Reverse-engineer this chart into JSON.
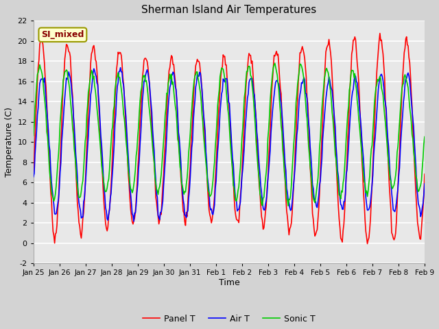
{
  "title": "Sherman Island Air Temperatures",
  "xlabel": "Time",
  "ylabel": "Temperature (C)",
  "ylim": [
    -2,
    22
  ],
  "yticks": [
    -2,
    0,
    2,
    4,
    6,
    8,
    10,
    12,
    14,
    16,
    18,
    20,
    22
  ],
  "background_color": "#d3d3d3",
  "plot_bg_color": "#e8e8e8",
  "grid_color": "#ffffff",
  "label_box_text": "SI_mixed",
  "label_box_facecolor": "#ffffcc",
  "label_box_edgecolor": "#999900",
  "label_box_textcolor": "#880000",
  "legend_labels": [
    "Panel T",
    "Air T",
    "Sonic T"
  ],
  "line_colors": [
    "#ff0000",
    "#0000ff",
    "#00cc00"
  ],
  "line_width": 1.2,
  "x_tick_labels": [
    "Jan 25",
    "Jan 26",
    "Jan 27",
    "Jan 28",
    "Jan 29",
    "Jan 30",
    "Jan 31",
    "Feb 1",
    "Feb 2",
    "Feb 3",
    "Feb 4",
    "Feb 5",
    "Feb 6",
    "Feb 7",
    "Feb 8",
    "Feb 9"
  ],
  "num_points": 500,
  "num_days": 15
}
